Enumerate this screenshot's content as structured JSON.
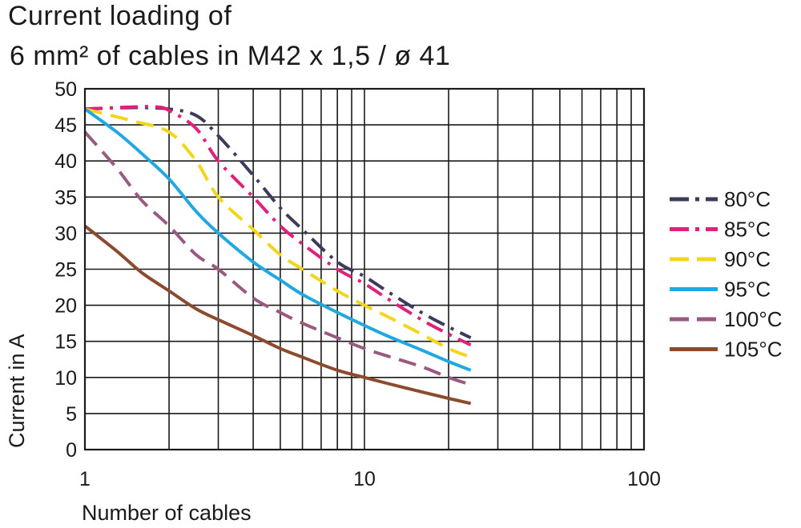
{
  "chart_data": {
    "type": "line",
    "title": "Current loading of",
    "subtitle": "6 mm² of cables in M42 x 1,5 / ø 41",
    "xlabel": "Number of cables",
    "ylabel": "Current in A",
    "xscale": "log",
    "xlim": [
      1,
      100
    ],
    "ylim": [
      0,
      50
    ],
    "x_ticks": [
      1,
      10,
      100
    ],
    "x_tick_labels": [
      "1",
      "10",
      "100"
    ],
    "y_ticks": [
      0,
      5,
      10,
      15,
      20,
      25,
      30,
      35,
      40,
      45,
      50
    ],
    "y_tick_labels": [
      "0",
      "5",
      "10",
      "15",
      "20",
      "25",
      "30",
      "35",
      "40",
      "45",
      "50"
    ],
    "grid": true,
    "legend_position": "right",
    "series": [
      {
        "name": "80°C",
        "color": "#3d3b5c",
        "dash": "dash-dot",
        "points": [
          [
            1,
            47.2
          ],
          [
            1.5,
            47.4
          ],
          [
            2,
            47.2
          ],
          [
            2.5,
            46.3
          ],
          [
            3,
            43.5
          ],
          [
            4,
            38
          ],
          [
            5,
            33.5
          ],
          [
            6,
            30.5
          ],
          [
            8,
            26
          ],
          [
            10,
            24
          ],
          [
            12,
            22
          ],
          [
            16,
            19
          ],
          [
            20,
            17
          ],
          [
            24,
            15.5
          ]
        ]
      },
      {
        "name": "85°C",
        "color": "#e0207a",
        "dash": "dash-dot",
        "points": [
          [
            1,
            47.2
          ],
          [
            1.5,
            47.5
          ],
          [
            1.8,
            47.5
          ],
          [
            2,
            47
          ],
          [
            2.5,
            44.5
          ],
          [
            3,
            40
          ],
          [
            4,
            35
          ],
          [
            5,
            31
          ],
          [
            6,
            28.5
          ],
          [
            8,
            25
          ],
          [
            10,
            23
          ],
          [
            12,
            21
          ],
          [
            16,
            18
          ],
          [
            20,
            16
          ],
          [
            24,
            14.5
          ]
        ]
      },
      {
        "name": "90°C",
        "color": "#f2d61a",
        "dash": "dashed",
        "points": [
          [
            1,
            47.2
          ],
          [
            1.5,
            45.5
          ],
          [
            2,
            44
          ],
          [
            2.5,
            40
          ],
          [
            3,
            35
          ],
          [
            4,
            30.5
          ],
          [
            5,
            27
          ],
          [
            6,
            25
          ],
          [
            8,
            22
          ],
          [
            10,
            20
          ],
          [
            12,
            18.5
          ],
          [
            16,
            16
          ],
          [
            20,
            14
          ],
          [
            24,
            12.8
          ]
        ]
      },
      {
        "name": "95°C",
        "color": "#22a8e0",
        "dash": "solid",
        "points": [
          [
            1,
            47.2
          ],
          [
            1.3,
            44
          ],
          [
            1.6,
            41
          ],
          [
            2,
            37.5
          ],
          [
            2.5,
            33
          ],
          [
            3,
            30
          ],
          [
            4,
            26
          ],
          [
            5,
            23.5
          ],
          [
            6,
            21.5
          ],
          [
            8,
            19
          ],
          [
            10,
            17.2
          ],
          [
            12,
            15.8
          ],
          [
            16,
            13.8
          ],
          [
            20,
            12.2
          ],
          [
            24,
            11
          ]
        ]
      },
      {
        "name": "100°C",
        "color": "#9a5a80",
        "dash": "dashed",
        "points": [
          [
            1,
            44
          ],
          [
            1.3,
            39
          ],
          [
            1.6,
            34.5
          ],
          [
            2,
            31
          ],
          [
            2.5,
            27
          ],
          [
            3,
            25
          ],
          [
            4,
            21
          ],
          [
            5,
            19
          ],
          [
            6,
            17.5
          ],
          [
            8,
            15.5
          ],
          [
            10,
            14
          ],
          [
            12,
            13
          ],
          [
            16,
            11.5
          ],
          [
            20,
            10
          ],
          [
            24,
            9
          ]
        ]
      },
      {
        "name": "105°C",
        "color": "#8c4a2e",
        "dash": "solid",
        "points": [
          [
            1,
            31
          ],
          [
            1.3,
            27.5
          ],
          [
            1.6,
            24.5
          ],
          [
            2,
            22
          ],
          [
            2.5,
            19.5
          ],
          [
            3,
            18
          ],
          [
            4,
            15.8
          ],
          [
            5,
            14
          ],
          [
            6,
            12.8
          ],
          [
            8,
            11
          ],
          [
            10,
            10
          ],
          [
            12,
            9.2
          ],
          [
            16,
            8
          ],
          [
            20,
            7.1
          ],
          [
            24,
            6.4
          ]
        ]
      }
    ]
  }
}
